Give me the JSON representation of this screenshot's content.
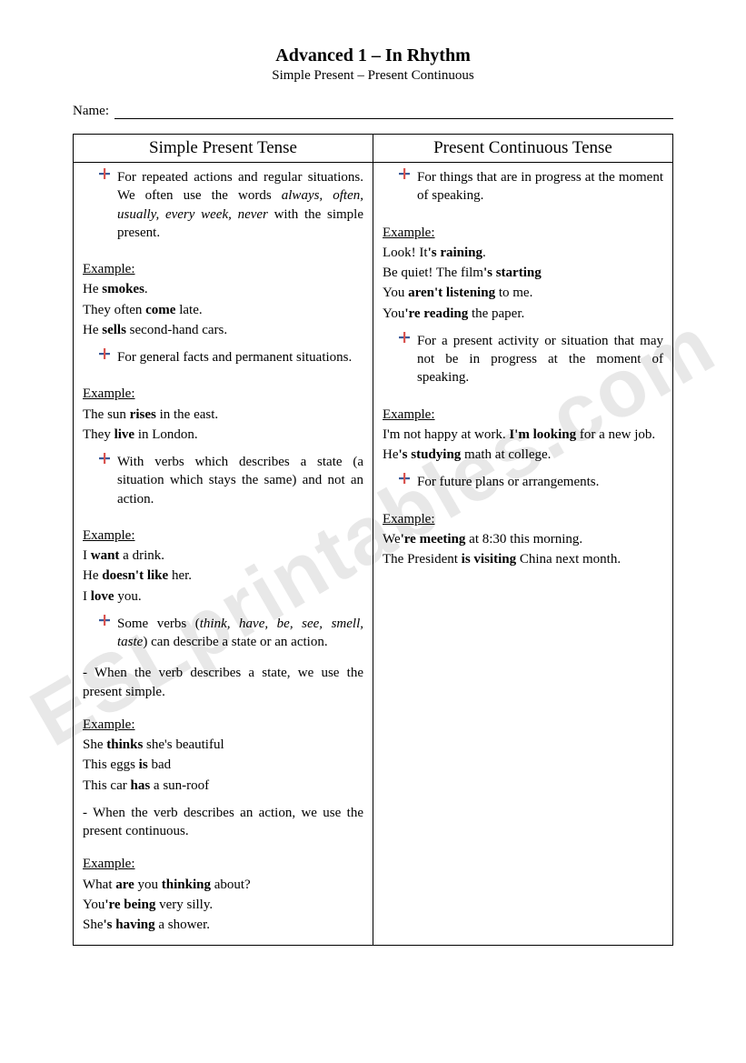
{
  "watermark": "ESLprintables.com",
  "header": {
    "title": "Advanced 1 – In Rhythm",
    "subtitle": "Simple Present – Present Continuous",
    "name_label": "Name:"
  },
  "bullet_colors": {
    "top": "#d9534f",
    "bottom": "#3b5998"
  },
  "columns": {
    "left": {
      "heading": "Simple Present Tense",
      "blocks": [
        {
          "type": "bullet",
          "html": "For repeated actions and regular situations. We often use the words <i>always, often, usually, every week, never</i> with the simple present."
        },
        {
          "type": "gap"
        },
        {
          "type": "label",
          "text": "Example:"
        },
        {
          "type": "line",
          "html": "He <b>smokes</b>."
        },
        {
          "type": "line",
          "html": "They often <b>come</b> late."
        },
        {
          "type": "line",
          "html": "He <b>sells</b> second-hand cars."
        },
        {
          "type": "gap"
        },
        {
          "type": "bullet",
          "html": "For general facts and permanent situations."
        },
        {
          "type": "gap"
        },
        {
          "type": "label",
          "text": "Example:"
        },
        {
          "type": "line",
          "html": "The sun <b>rises</b> in the east."
        },
        {
          "type": "line",
          "html": "They <b>live</b> in London."
        },
        {
          "type": "gap"
        },
        {
          "type": "bullet",
          "html": "With verbs which describes a state (a situation which stays the same) and not an action."
        },
        {
          "type": "gap"
        },
        {
          "type": "label",
          "text": "Example:"
        },
        {
          "type": "line",
          "html": "I <b>want</b> a drink."
        },
        {
          "type": "line",
          "html": "He <b>doesn't like</b> her."
        },
        {
          "type": "line",
          "html": "I <b>love</b> you."
        },
        {
          "type": "gap"
        },
        {
          "type": "bullet",
          "html": "Some verbs (<i>think, have, be, see, smell, taste</i>) can describe a state or an action."
        },
        {
          "type": "gap"
        },
        {
          "type": "line",
          "html": "- When the verb describes a state, we use the present simple."
        },
        {
          "type": "gap"
        },
        {
          "type": "label",
          "text": "Example:"
        },
        {
          "type": "line",
          "html": "She <b>thinks</b> she's beautiful"
        },
        {
          "type": "line",
          "html": "This eggs <b>is</b> bad"
        },
        {
          "type": "line",
          "html": "This car <b>has</b> a sun-roof"
        },
        {
          "type": "gap"
        },
        {
          "type": "line",
          "html": "- When the verb describes an action, we use the present continuous."
        },
        {
          "type": "gap"
        },
        {
          "type": "label",
          "text": "Example:"
        },
        {
          "type": "line",
          "html": "What <b>are</b> you <b>thinking</b> about?"
        },
        {
          "type": "line",
          "html": "You<b>'re being</b> very silly."
        },
        {
          "type": "line",
          "html": "She<b>'s having</b> a shower."
        }
      ]
    },
    "right": {
      "heading": "Present Continuous Tense",
      "blocks": [
        {
          "type": "bullet",
          "html": "For things that are in progress at the moment of speaking."
        },
        {
          "type": "gap"
        },
        {
          "type": "label",
          "text": "Example:"
        },
        {
          "type": "line",
          "html": "Look! It<b>'s raining</b>."
        },
        {
          "type": "line",
          "html": "Be quiet! The film<b>'s starting</b>"
        },
        {
          "type": "line",
          "html": "You <b>aren't listening</b> to me."
        },
        {
          "type": "line",
          "html": "You<b>'re reading</b> the paper."
        },
        {
          "type": "gap"
        },
        {
          "type": "bullet",
          "html": "For a present activity or situation that may not be in progress at the moment of speaking."
        },
        {
          "type": "gap"
        },
        {
          "type": "label",
          "text": "Example:"
        },
        {
          "type": "line",
          "html": "I'm not happy at work. <b>I'm looking</b> for a new job."
        },
        {
          "type": "line",
          "html": "He<b>'s studying</b> math at college."
        },
        {
          "type": "gap"
        },
        {
          "type": "bullet",
          "html": "For future plans or arrangements."
        },
        {
          "type": "gap"
        },
        {
          "type": "label",
          "text": "Example:"
        },
        {
          "type": "line",
          "html": "We<b>'re meeting</b> at 8:30 this morning."
        },
        {
          "type": "line",
          "html": "The President <b>is visiting</b> China next month."
        }
      ]
    }
  }
}
